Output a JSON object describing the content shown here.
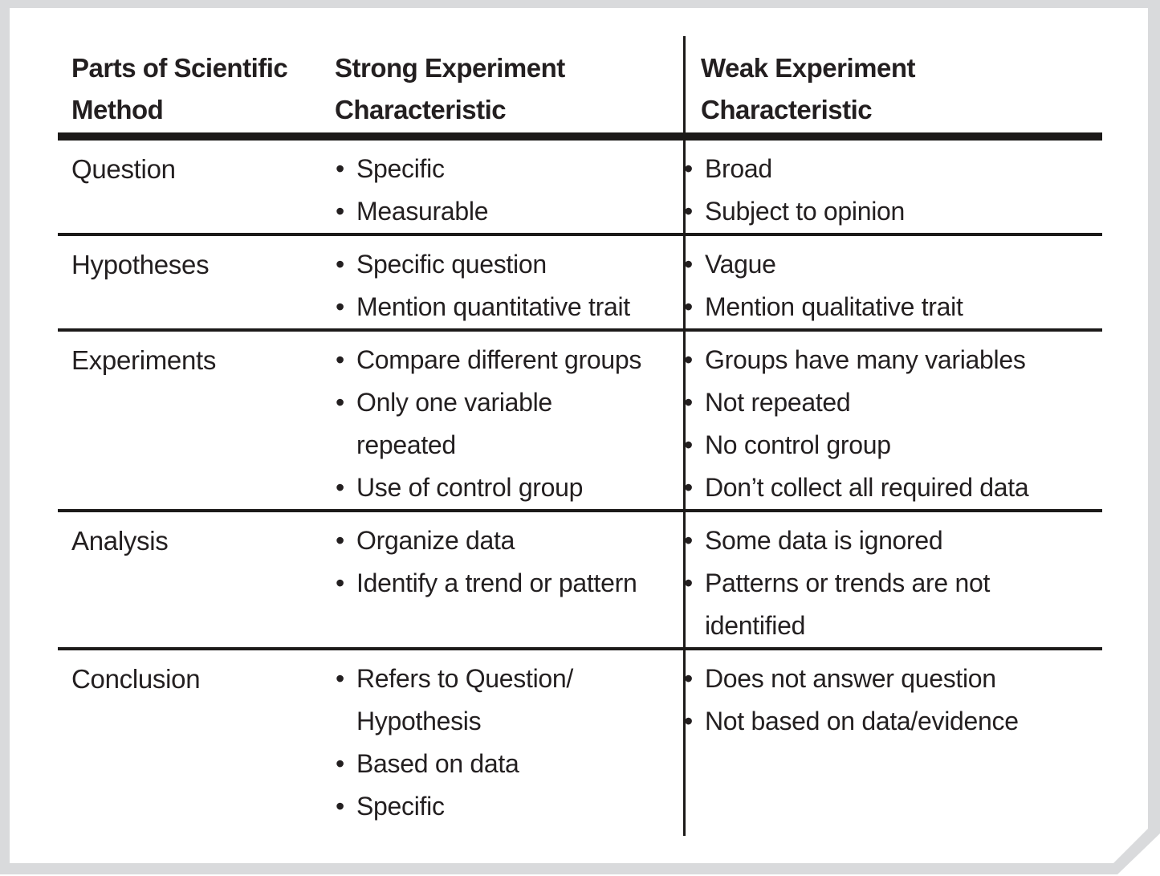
{
  "colors": {
    "text": "#231f20",
    "rule": "#1c1a19",
    "frame_gray": "#d9dadc",
    "page_white": "#ffffff"
  },
  "table": {
    "headers": [
      "Parts of Scientific\nMethod",
      "Strong Experiment\nCharacteristic",
      "Weak Experiment\nCharacteristic"
    ],
    "rows": [
      {
        "part": "Question",
        "strong": [
          "Specific",
          "Measurable"
        ],
        "weak": [
          "Broad",
          "Subject to opinion"
        ]
      },
      {
        "part": "Hypotheses",
        "strong": [
          "Specific question",
          "Mention quantitative trait"
        ],
        "weak": [
          "Vague",
          "Mention qualitative trait"
        ]
      },
      {
        "part": "Experiments",
        "strong": [
          "Compare different groups",
          "Only one variable\nrepeated",
          "Use of control group"
        ],
        "weak": [
          "Groups have many variables",
          "Not repeated",
          "No control group",
          "Don’t collect all required data"
        ]
      },
      {
        "part": "Analysis",
        "strong": [
          "Organize data",
          "Identify a trend or pattern"
        ],
        "weak": [
          "Some data is ignored",
          "Patterns or trends are not\nidentified"
        ]
      },
      {
        "part": "Conclusion",
        "strong": [
          "Refers to Question/\nHypothesis",
          "Based on data",
          "Specific"
        ],
        "weak": [
          "Does not answer question",
          "Not based on data/evidence"
        ]
      }
    ]
  }
}
